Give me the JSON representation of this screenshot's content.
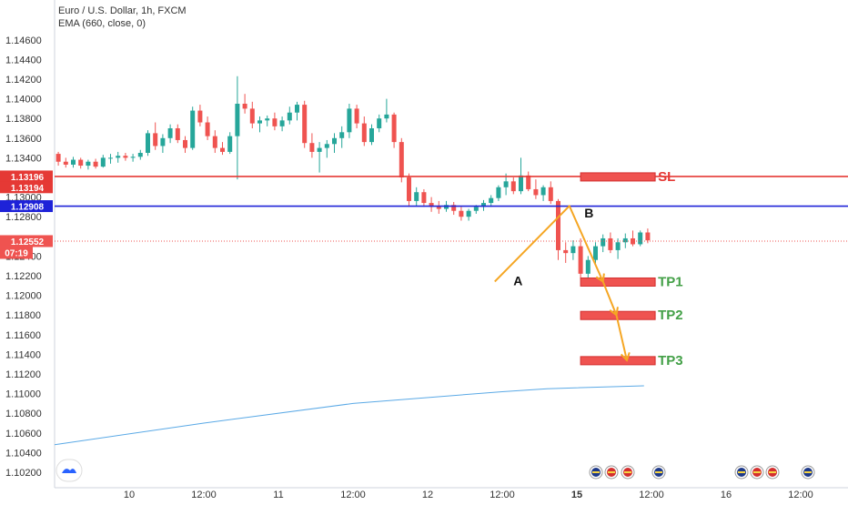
{
  "legend": {
    "title": "Euro / U.S. Dollar, 1h, FXCM",
    "indicator": "EMA (660, close, 0)"
  },
  "colors": {
    "up": "#26a69a",
    "down": "#ef5350",
    "sl_line": "#e53935",
    "entry_line": "#1e22d8",
    "ema": "#5aa9e6",
    "projection": "#f5a623",
    "tp_text": "#43a047",
    "sl_text": "#e53935",
    "current_price": "#ef5350",
    "axis_text": "#333333"
  },
  "chart_data": {
    "type": "candlestick",
    "y_axis": {
      "min": 1.101,
      "max": 1.1468,
      "ticks": [
        "1.14600",
        "1.14400",
        "1.14200",
        "1.14000",
        "1.13800",
        "1.13600",
        "1.13400",
        "1.13000",
        "1.12800",
        "1.12400",
        "1.12200",
        "1.12000",
        "1.11800",
        "1.11600",
        "1.11400",
        "1.11200",
        "1.11000",
        "1.10800",
        "1.10600",
        "1.10400",
        "1.10200"
      ]
    },
    "x_axis": {
      "tick_labels": [
        {
          "label": "10",
          "bar": 10
        },
        {
          "label": "12:00",
          "bar": 20
        },
        {
          "label": "11",
          "bar": 30
        },
        {
          "label": "12:00",
          "bar": 40
        },
        {
          "label": "12",
          "bar": 50
        },
        {
          "label": "12:00",
          "bar": 60
        },
        {
          "label": "15",
          "bar": 70,
          "bold": true
        },
        {
          "label": "12:00",
          "bar": 80
        },
        {
          "label": "16",
          "bar": 90
        },
        {
          "label": "12:00",
          "bar": 100
        }
      ]
    },
    "candles": [
      [
        1.1344,
        1.1346,
        1.1332,
        1.1336
      ],
      [
        1.1336,
        1.134,
        1.133,
        1.1333
      ],
      [
        1.1333,
        1.1341,
        1.133,
        1.1338
      ],
      [
        1.1338,
        1.134,
        1.1329,
        1.1332
      ],
      [
        1.1332,
        1.1338,
        1.1328,
        1.1336
      ],
      [
        1.1336,
        1.1339,
        1.1329,
        1.1331
      ],
      [
        1.1331,
        1.1343,
        1.133,
        1.134
      ],
      [
        1.134,
        1.1344,
        1.1334,
        1.134
      ],
      [
        1.134,
        1.1346,
        1.1335,
        1.1342
      ],
      [
        1.1342,
        1.1345,
        1.1337,
        1.134
      ],
      [
        1.134,
        1.1344,
        1.1336,
        1.1341
      ],
      [
        1.1341,
        1.1348,
        1.1338,
        1.1345
      ],
      [
        1.1345,
        1.1368,
        1.1342,
        1.1365
      ],
      [
        1.1365,
        1.1376,
        1.1348,
        1.1352
      ],
      [
        1.1352,
        1.1364,
        1.1345,
        1.136
      ],
      [
        1.136,
        1.1374,
        1.1355,
        1.137
      ],
      [
        1.137,
        1.1374,
        1.1355,
        1.1358
      ],
      [
        1.1358,
        1.1362,
        1.1345,
        1.135
      ],
      [
        1.135,
        1.1392,
        1.1348,
        1.1388
      ],
      [
        1.1388,
        1.1394,
        1.1372,
        1.1376
      ],
      [
        1.1376,
        1.1382,
        1.1358,
        1.1362
      ],
      [
        1.1362,
        1.1368,
        1.1345,
        1.135
      ],
      [
        1.135,
        1.1356,
        1.1343,
        1.1346
      ],
      [
        1.1346,
        1.1366,
        1.1344,
        1.1362
      ],
      [
        1.1362,
        1.1423,
        1.1318,
        1.1395
      ],
      [
        1.1395,
        1.1405,
        1.1385,
        1.139
      ],
      [
        1.139,
        1.1397,
        1.137,
        1.1375
      ],
      [
        1.1375,
        1.1382,
        1.1366,
        1.1378
      ],
      [
        1.1378,
        1.1383,
        1.1372,
        1.138
      ],
      [
        1.138,
        1.1386,
        1.1368,
        1.1372
      ],
      [
        1.1372,
        1.1382,
        1.1367,
        1.1378
      ],
      [
        1.1378,
        1.1392,
        1.1374,
        1.1386
      ],
      [
        1.1386,
        1.1397,
        1.1378,
        1.1394
      ],
      [
        1.1394,
        1.1398,
        1.135,
        1.1355
      ],
      [
        1.1355,
        1.1365,
        1.134,
        1.1346
      ],
      [
        1.1346,
        1.1356,
        1.1325,
        1.135
      ],
      [
        1.135,
        1.1358,
        1.134,
        1.1354
      ],
      [
        1.1354,
        1.1365,
        1.1345,
        1.136
      ],
      [
        1.136,
        1.1372,
        1.135,
        1.1366
      ],
      [
        1.1366,
        1.1395,
        1.136,
        1.139
      ],
      [
        1.139,
        1.1394,
        1.137,
        1.1375
      ],
      [
        1.1375,
        1.1382,
        1.1352,
        1.1356
      ],
      [
        1.1356,
        1.1374,
        1.1353,
        1.137
      ],
      [
        1.137,
        1.1384,
        1.1366,
        1.138
      ],
      [
        1.138,
        1.14,
        1.1376,
        1.1384
      ],
      [
        1.1384,
        1.1386,
        1.135,
        1.1356
      ],
      [
        1.1356,
        1.136,
        1.1315,
        1.132
      ],
      [
        1.132,
        1.1324,
        1.129,
        1.1296
      ],
      [
        1.1296,
        1.131,
        1.1291,
        1.1305
      ],
      [
        1.1305,
        1.1308,
        1.129,
        1.1294
      ],
      [
        1.1294,
        1.13,
        1.1285,
        1.129
      ],
      [
        1.129,
        1.1296,
        1.1283,
        1.1288
      ],
      [
        1.1288,
        1.1296,
        1.1285,
        1.1292
      ],
      [
        1.1292,
        1.1295,
        1.1282,
        1.1286
      ],
      [
        1.1286,
        1.129,
        1.1276,
        1.128
      ],
      [
        1.128,
        1.1288,
        1.1276,
        1.1286
      ],
      [
        1.1286,
        1.1292,
        1.1283,
        1.129
      ],
      [
        1.129,
        1.1297,
        1.1286,
        1.1294
      ],
      [
        1.1294,
        1.1302,
        1.129,
        1.1299
      ],
      [
        1.1299,
        1.1312,
        1.1296,
        1.131
      ],
      [
        1.131,
        1.1324,
        1.1302,
        1.1316
      ],
      [
        1.1316,
        1.132,
        1.1303,
        1.1306
      ],
      [
        1.1306,
        1.134,
        1.1303,
        1.1322
      ],
      [
        1.1322,
        1.1326,
        1.1306,
        1.1308
      ],
      [
        1.1308,
        1.1318,
        1.1298,
        1.1302
      ],
      [
        1.1302,
        1.1312,
        1.1296,
        1.131
      ],
      [
        1.131,
        1.1316,
        1.1293,
        1.1296
      ],
      [
        1.1296,
        1.1298,
        1.1236,
        1.1246
      ],
      [
        1.1246,
        1.1254,
        1.1233,
        1.1243
      ],
      [
        1.1243,
        1.1256,
        1.1236,
        1.125
      ],
      [
        1.125,
        1.1258,
        1.1217,
        1.1222
      ],
      [
        1.1222,
        1.124,
        1.1214,
        1.1236
      ],
      [
        1.1236,
        1.1254,
        1.1232,
        1.125
      ],
      [
        1.125,
        1.1262,
        1.1244,
        1.1258
      ],
      [
        1.1258,
        1.1264,
        1.1243,
        1.1246
      ],
      [
        1.1246,
        1.1258,
        1.1237,
        1.1254
      ],
      [
        1.1254,
        1.1263,
        1.1248,
        1.1258
      ],
      [
        1.1258,
        1.1266,
        1.125,
        1.1252
      ],
      [
        1.1252,
        1.1266,
        1.125,
        1.1264
      ],
      [
        1.1264,
        1.1268,
        1.1253,
        1.1256
      ]
    ],
    "ema": [
      {
        "bar": 0,
        "value": 1.1048
      },
      {
        "bar": 20,
        "value": 1.107
      },
      {
        "bar": 40,
        "value": 1.109
      },
      {
        "bar": 60,
        "value": 1.1102
      },
      {
        "bar": 66,
        "value": 1.1105
      },
      {
        "bar": 79,
        "value": 1.1108
      }
    ],
    "levels": {
      "sl_line": 1.1321,
      "entry_line": 1.12908
    },
    "price_tags": [
      {
        "value": 1.1321,
        "label": "1.13196",
        "color": "#e53935"
      },
      {
        "value": 1.131,
        "label": "1.13194",
        "color": "#e53935"
      },
      {
        "value": 1.12908,
        "label": "1.12908",
        "color": "#1e22d8"
      },
      {
        "value": 1.12552,
        "label": "1.12552",
        "color": "#ef5350",
        "sub": "07:19"
      }
    ],
    "current_price": 1.12552,
    "zones": [
      {
        "label": "SL",
        "value": 1.1321,
        "bar_start": 70.5,
        "bar_end": 80.5
      },
      {
        "label": "TP1",
        "value": 1.1214,
        "bar_start": 70.5,
        "bar_end": 80.5
      },
      {
        "label": "TP2",
        "value": 1.118,
        "bar_start": 70.5,
        "bar_end": 80.5
      },
      {
        "label": "TP3",
        "value": 1.1134,
        "bar_start": 70.5,
        "bar_end": 80.5
      }
    ],
    "projection": [
      {
        "bar": 59,
        "value": 1.1214
      },
      {
        "bar": 69,
        "value": 1.1291
      },
      {
        "bar": 73.5,
        "value": 1.1214
      },
      {
        "bar": 75.3,
        "value": 1.118
      },
      {
        "bar": 76.7,
        "value": 1.1134
      }
    ],
    "point_labels": [
      {
        "label": "A",
        "bar": 61.5,
        "value": 1.1215
      },
      {
        "label": "B",
        "bar": 71,
        "value": 1.1284
      }
    ]
  }
}
